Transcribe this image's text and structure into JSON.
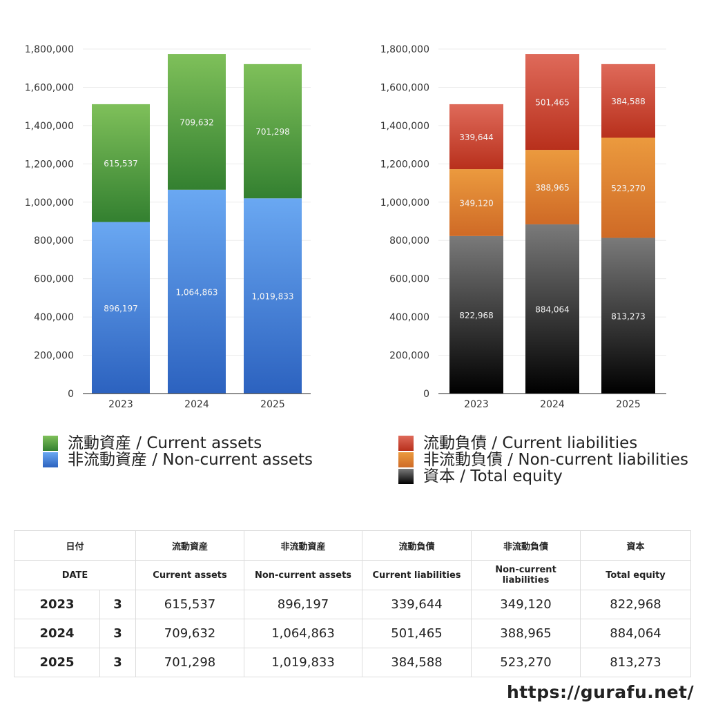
{
  "chart_data": [
    {
      "type": "bar",
      "stacked": true,
      "categories": [
        "2023",
        "2024",
        "2025"
      ],
      "series": [
        {
          "name": "非流動資産 / Non-current assets",
          "values": [
            896197,
            1064863,
            1019833
          ],
          "color": "#4a86d8"
        },
        {
          "name": "流動資産 / Current assets",
          "values": [
            615537,
            709632,
            701298
          ],
          "color": "#5aa848"
        }
      ],
      "yticks": [
        "0",
        "200,000",
        "400,000",
        "600,000",
        "800,000",
        "1,000,000",
        "1,200,000",
        "1,400,000",
        "1,600,000",
        "1,800,000"
      ],
      "ylim": [
        0,
        1800000
      ],
      "grid": true,
      "legend": "bottom"
    },
    {
      "type": "bar",
      "stacked": true,
      "categories": [
        "2023",
        "2024",
        "2025"
      ],
      "series": [
        {
          "name": "資本 / Total equity",
          "values": [
            822968,
            884064,
            813273
          ],
          "color": "#3a3a3a"
        },
        {
          "name": "非流動負債 / Non-current liabilities",
          "values": [
            349120,
            388965,
            523270
          ],
          "color": "#e0852e"
        },
        {
          "name": "流動負債 / Current liabilities",
          "values": [
            339644,
            501465,
            384588
          ],
          "color": "#d0503f"
        }
      ],
      "yticks": [
        "0",
        "200,000",
        "400,000",
        "600,000",
        "800,000",
        "1,000,000",
        "1,200,000",
        "1,400,000",
        "1,600,000",
        "1,800,000"
      ],
      "ylim": [
        0,
        1800000
      ],
      "grid": true,
      "legend": "bottom"
    }
  ],
  "legend_left": [
    {
      "label": "流動資産 / Current assets",
      "color": "#5aa848"
    },
    {
      "label": "非流動資産 / Non-current assets",
      "color": "#4a86d8"
    }
  ],
  "legend_right": [
    {
      "label": "流動負債 / Current liabilities",
      "color": "#d0503f"
    },
    {
      "label": "非流動負債 / Non-current liabilities",
      "color": "#e0852e"
    },
    {
      "label": "資本 / Total equity",
      "color": "#3a3a3a"
    }
  ],
  "table": {
    "header_jp": [
      "日付",
      "流動資産",
      "非流動資産",
      "流動負債",
      "非流動負債",
      "資本"
    ],
    "header_en": [
      "DATE",
      "Current assets",
      "Non-current assets",
      "Current liabilities",
      "Non-current liabilities",
      "Total equity"
    ],
    "rows": [
      {
        "year": "2023",
        "month": "3",
        "cells": [
          "615,537",
          "896,197",
          "339,644",
          "349,120",
          "822,968"
        ]
      },
      {
        "year": "2024",
        "month": "3",
        "cells": [
          "709,632",
          "1,064,863",
          "501,465",
          "388,965",
          "884,064"
        ]
      },
      {
        "year": "2025",
        "month": "3",
        "cells": [
          "701,298",
          "1,019,833",
          "384,588",
          "523,270",
          "813,273"
        ]
      }
    ]
  },
  "site_url": "https://gurafu.net/"
}
